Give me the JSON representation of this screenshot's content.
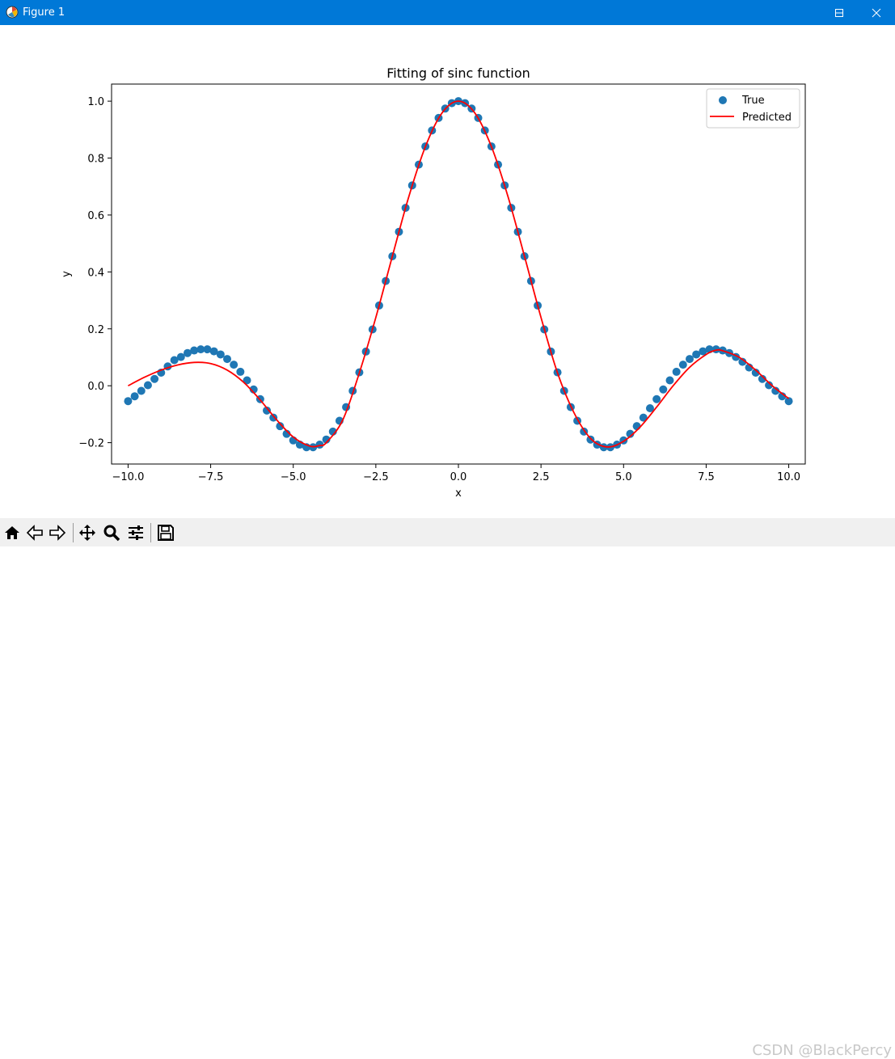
{
  "window": {
    "title": "Figure 1"
  },
  "watermark": "CSDN @BlackPercy",
  "toolbar": {
    "buttons": [
      "home-icon",
      "back-icon",
      "forward-icon",
      "pan-icon",
      "zoom-icon",
      "configure-subplots-icon",
      "save-icon"
    ]
  },
  "chart_data": {
    "type": "scatter",
    "title": "Fitting of sinc function",
    "xlabel": "x",
    "ylabel": "y",
    "xlim": [
      -10.5,
      10.5
    ],
    "ylim": [
      -0.275,
      1.06
    ],
    "xticks": [
      "−10.0",
      "−7.5",
      "−5.0",
      "−2.5",
      "0.0",
      "2.5",
      "5.0",
      "7.5",
      "10.0"
    ],
    "xtick_values": [
      -10,
      -7.5,
      -5,
      -2.5,
      0,
      2.5,
      5,
      7.5,
      10
    ],
    "yticks": [
      "−0.2",
      "0.0",
      "0.2",
      "0.4",
      "0.6",
      "0.8",
      "1.0"
    ],
    "ytick_values": [
      -0.2,
      0,
      0.2,
      0.4,
      0.6,
      0.8,
      1.0
    ],
    "legend_position": "upper right",
    "grid": false,
    "series": [
      {
        "name": "True",
        "kind": "scatter",
        "color": "#1f77b4",
        "x": [
          -10.0,
          -9.8,
          -9.6,
          -9.4,
          -9.2,
          -9.0,
          -8.8,
          -8.6,
          -8.4,
          -8.2,
          -8.0,
          -7.8,
          -7.6,
          -7.4,
          -7.2,
          -7.0,
          -6.8,
          -6.6,
          -6.4,
          -6.2,
          -6.0,
          -5.8,
          -5.6,
          -5.4,
          -5.2,
          -5.0,
          -4.8,
          -4.6,
          -4.4,
          -4.2,
          -4.0,
          -3.8,
          -3.6,
          -3.4,
          -3.2,
          -3.0,
          -2.8,
          -2.6,
          -2.4,
          -2.2,
          -2.0,
          -1.8,
          -1.6,
          -1.4,
          -1.2,
          -1.0,
          -0.8,
          -0.6,
          -0.4,
          -0.2,
          0.0,
          0.2,
          0.4,
          0.6,
          0.8,
          1.0,
          1.2,
          1.4,
          1.6,
          1.8,
          2.0,
          2.2,
          2.4,
          2.6,
          2.8,
          3.0,
          3.2,
          3.4,
          3.6,
          3.8,
          4.0,
          4.2,
          4.4,
          4.6,
          4.8,
          5.0,
          5.2,
          5.4,
          5.6,
          5.8,
          6.0,
          6.2,
          6.4,
          6.6,
          6.8,
          7.0,
          7.2,
          7.4,
          7.6,
          7.8,
          8.0,
          8.2,
          8.4,
          8.6,
          8.8,
          9.0,
          9.2,
          9.4,
          9.6,
          9.8,
          10.0
        ],
        "y": [
          -0.054,
          -0.037,
          -0.018,
          0.002,
          0.024,
          0.046,
          0.068,
          0.09,
          0.101,
          0.115,
          0.124,
          0.128,
          0.128,
          0.121,
          0.11,
          0.094,
          0.074,
          0.049,
          0.019,
          -0.013,
          -0.047,
          -0.087,
          -0.112,
          -0.142,
          -0.169,
          -0.192,
          -0.207,
          -0.216,
          -0.216,
          -0.207,
          -0.189,
          -0.161,
          -0.123,
          -0.075,
          -0.018,
          0.047,
          0.12,
          0.198,
          0.282,
          0.368,
          0.455,
          0.541,
          0.625,
          0.704,
          0.777,
          0.841,
          0.897,
          0.941,
          0.974,
          0.993,
          1.0,
          0.993,
          0.974,
          0.941,
          0.897,
          0.841,
          0.777,
          0.704,
          0.625,
          0.541,
          0.455,
          0.368,
          0.282,
          0.198,
          0.12,
          0.047,
          -0.018,
          -0.075,
          -0.123,
          -0.161,
          -0.189,
          -0.207,
          -0.216,
          -0.216,
          -0.207,
          -0.192,
          -0.169,
          -0.142,
          -0.112,
          -0.079,
          -0.047,
          -0.013,
          0.019,
          0.049,
          0.074,
          0.094,
          0.11,
          0.121,
          0.128,
          0.128,
          0.124,
          0.115,
          0.101,
          0.084,
          0.064,
          0.046,
          0.024,
          0.002,
          -0.018,
          -0.037,
          -0.054
        ]
      },
      {
        "name": "Predicted",
        "kind": "line",
        "color": "#ff0000",
        "x": [
          -10.0,
          -9.5,
          -9.0,
          -8.5,
          -8.0,
          -7.5,
          -7.0,
          -6.5,
          -6.0,
          -5.5,
          -5.0,
          -4.5,
          -4.2,
          -4.0,
          -3.5,
          -3.0,
          -2.5,
          -2.0,
          -1.5,
          -1.0,
          -0.5,
          0.0,
          0.5,
          1.0,
          1.5,
          2.0,
          2.5,
          3.0,
          3.5,
          4.0,
          4.5,
          5.0,
          5.5,
          6.0,
          6.5,
          7.0,
          7.5,
          7.8,
          8.0,
          8.5,
          9.0,
          9.5,
          10.0
        ],
        "y": [
          0.0,
          0.03,
          0.055,
          0.073,
          0.082,
          0.078,
          0.055,
          0.012,
          -0.05,
          -0.12,
          -0.18,
          -0.212,
          -0.21,
          -0.2,
          -0.12,
          0.045,
          0.24,
          0.455,
          0.665,
          0.84,
          0.958,
          1.0,
          0.958,
          0.84,
          0.665,
          0.455,
          0.24,
          0.045,
          -0.095,
          -0.185,
          -0.215,
          -0.195,
          -0.145,
          -0.075,
          0.0,
          0.065,
          0.11,
          0.125,
          0.123,
          0.1,
          0.055,
          0.0,
          -0.045
        ]
      }
    ]
  }
}
